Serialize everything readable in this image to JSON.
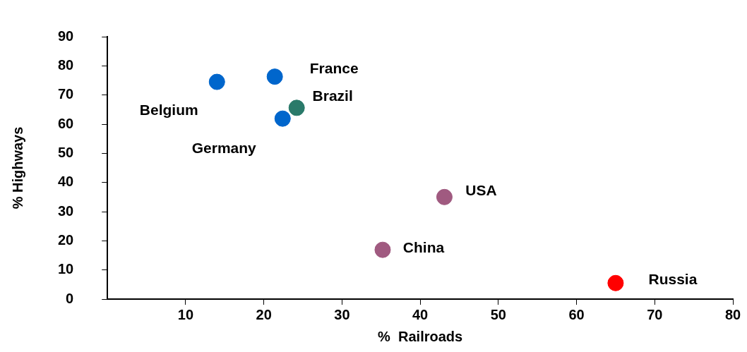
{
  "chart_data": {
    "type": "scatter",
    "xlabel": "%  Railroads",
    "ylabel": "% Highways",
    "series": [
      {
        "name": "Belgium",
        "color": "#0066cc",
        "x": [
          14.0
        ],
        "values": [
          74.5
        ]
      },
      {
        "name": "France",
        "color": "#0066cc",
        "x": [
          21.4
        ],
        "values": [
          76.3
        ]
      },
      {
        "name": "Brazil",
        "color": "#2a7a6a",
        "x": [
          24.2
        ],
        "values": [
          65.6
        ]
      },
      {
        "name": "Germany",
        "color": "#0066cc",
        "x": [
          22.4
        ],
        "values": [
          61.9
        ]
      },
      {
        "name": "USA",
        "color": "#a05a80",
        "x": [
          43.1
        ],
        "values": [
          35.0
        ]
      },
      {
        "name": "China",
        "color": "#a05a80",
        "x": [
          35.2
        ],
        "values": [
          16.9
        ]
      },
      {
        "name": "Russia",
        "color": "#ff0000",
        "x": [
          65.0
        ],
        "values": [
          5.5
        ]
      }
    ],
    "xlim": [
      0,
      80
    ],
    "xticks": [
      10,
      20,
      30,
      40,
      50,
      60,
      70,
      80
    ],
    "ylim": [
      0,
      90
    ],
    "yticks": [
      0,
      10,
      20,
      30,
      40,
      50,
      60,
      70,
      80,
      90
    ],
    "grid": false,
    "legend": false,
    "marker": "circle"
  }
}
